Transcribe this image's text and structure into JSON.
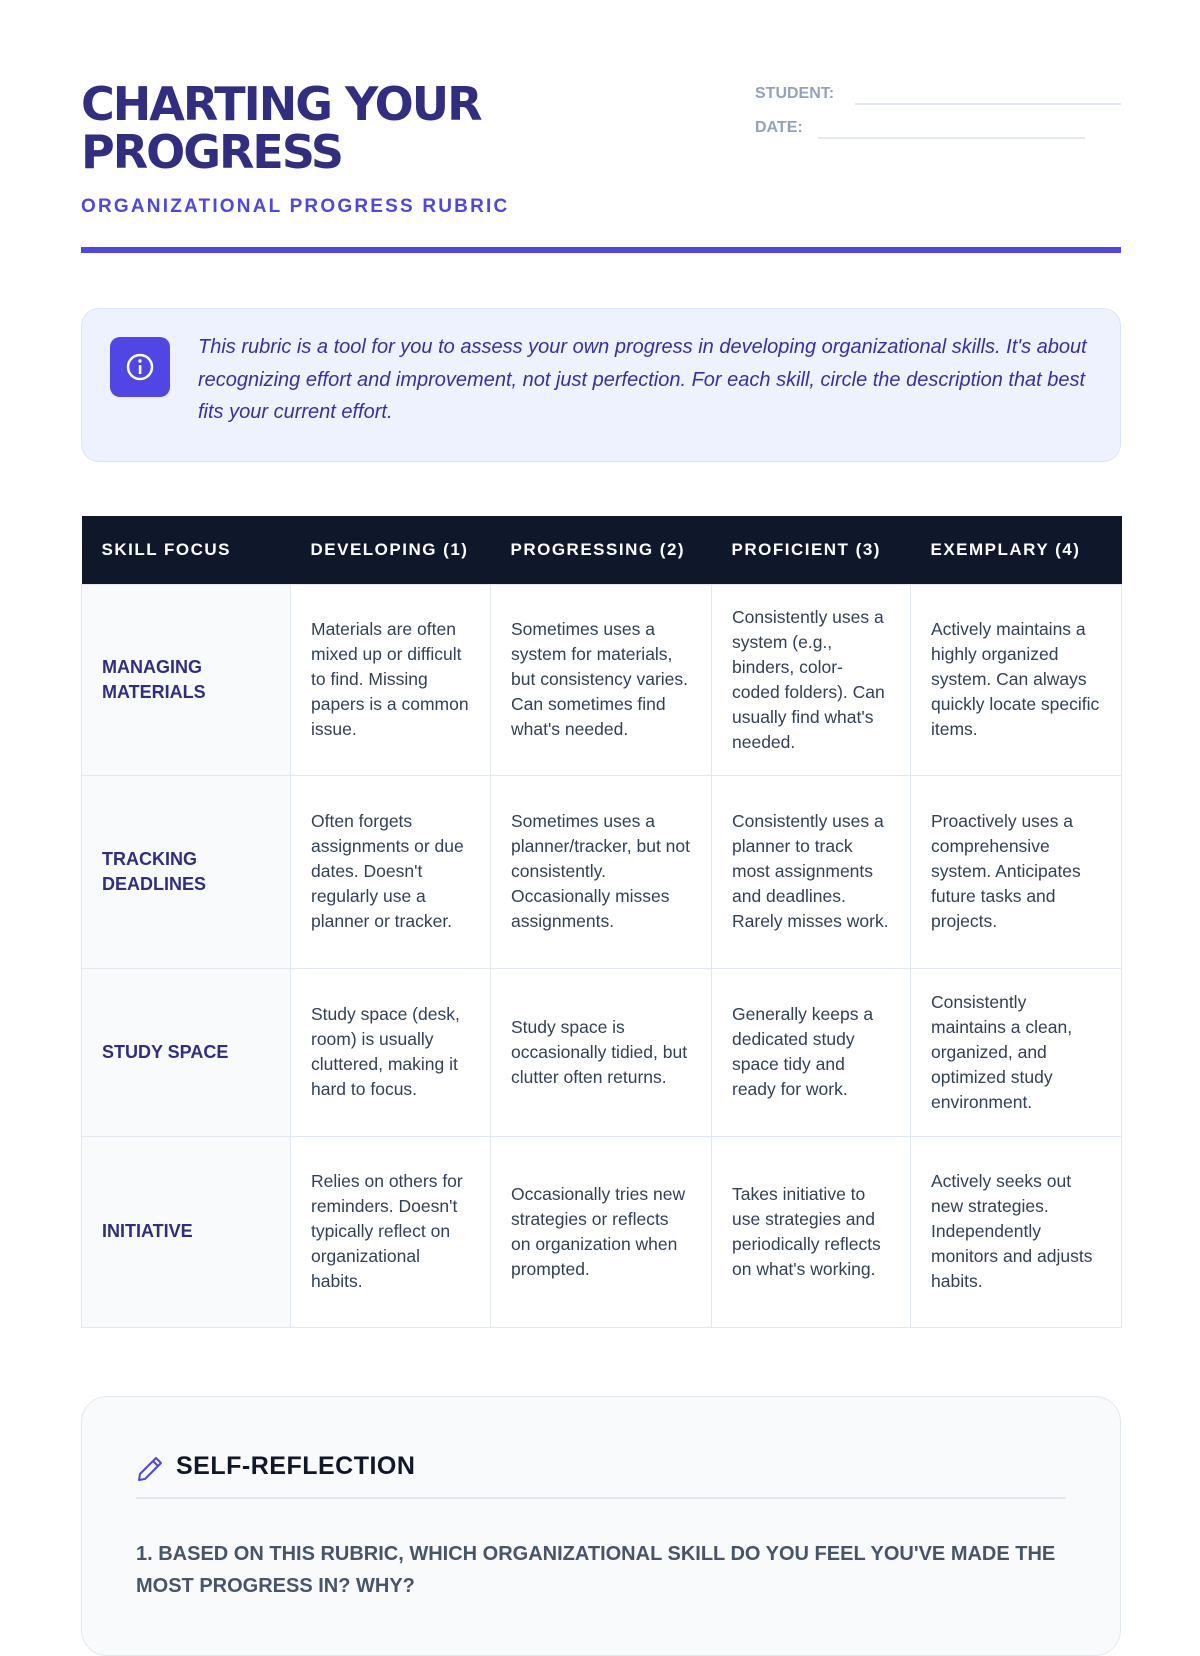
{
  "header": {
    "title_line1": "CHARTING YOUR",
    "title_line2": "PROGRESS",
    "subtitle": "ORGANIZATIONAL PROGRESS RUBRIC",
    "student_label": "STUDENT:",
    "date_label": "DATE:"
  },
  "info": {
    "icon": "info-icon",
    "text": "This rubric is a tool for you to assess your own progress in developing organizational skills. It's about recognizing effort and improvement, not just perfection. For each skill, circle the description that best fits your current effort."
  },
  "table": {
    "headers": [
      "SKILL FOCUS",
      "DEVELOPING (1)",
      "PROGRESSING (2)",
      "PROFICIENT (3)",
      "EXEMPLARY (4)"
    ],
    "rows": [
      {
        "skill": "MANAGING MATERIALS",
        "cells": [
          "Materials are often mixed up or difficult to find. Missing papers is a common issue.",
          "Sometimes uses a system for materials, but consistency varies. Can sometimes find what's needed.",
          "Consistently uses a system (e.g., binders, color-coded folders). Can usually find what's needed.",
          "Actively maintains a highly organized system. Can always quickly locate specific items."
        ]
      },
      {
        "skill": "TRACKING DEADLINES",
        "cells": [
          "Often forgets assignments or due dates. Doesn't regularly use a planner or tracker.",
          "Sometimes uses a planner/tracker, but not consistently. Occasionally misses assignments.",
          "Consistently uses a planner to track most assignments and deadlines. Rarely misses work.",
          "Proactively uses a comprehensive system. Anticipates future tasks and projects."
        ]
      },
      {
        "skill": "STUDY SPACE",
        "cells": [
          "Study space (desk, room) is usually cluttered, making it hard to focus.",
          "Study space is occasionally tidied, but clutter often returns.",
          "Generally keeps a dedicated study space tidy and ready for work.",
          "Consistently maintains a clean, organized, and optimized study environment."
        ]
      },
      {
        "skill": "INITIATIVE",
        "cells": [
          "Relies on others for reminders. Doesn't typically reflect on organizational habits.",
          "Occasionally tries new strategies or reflects on organization when prompted.",
          "Takes initiative to use strategies and periodically reflects on what's working.",
          "Actively seeks out new strategies. Independently monitors and adjusts habits."
        ]
      }
    ]
  },
  "reflection": {
    "icon": "pencil-icon",
    "title": "SELF-REFLECTION",
    "question1": "1. BASED ON THIS RUBRIC, WHICH ORGANIZATIONAL SKILL DO YOU FEEL YOU'VE MADE THE MOST PROGRESS IN? WHY?"
  }
}
